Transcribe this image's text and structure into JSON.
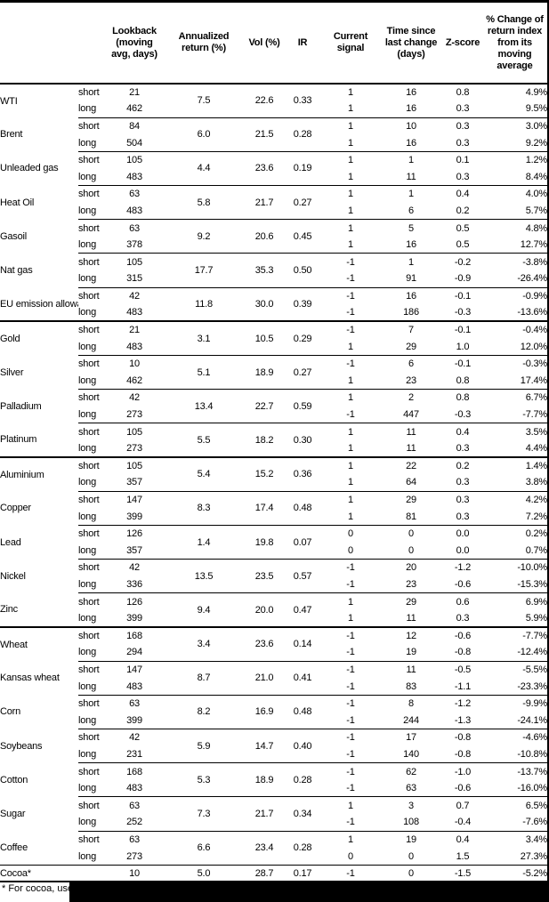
{
  "colors": {
    "background": "#ffffff",
    "text": "#000000",
    "rule": "#000000",
    "redaction": "#000000"
  },
  "table": {
    "header": {
      "name": "",
      "position": "",
      "lookback": "Lookback (moving avg, days)",
      "annualized_return": "Annualized return (%)",
      "vol": "Vol (%)",
      "ir": "IR",
      "current_signal": "Current signal",
      "time_since": "Time since last change (days)",
      "z_score": "Z-score",
      "pct_change": "% Change of return index from its moving average"
    },
    "commodities": [
      {
        "name": "WTI",
        "rule": "none",
        "annualized_return": "7.5",
        "vol": "22.6",
        "ir": "0.33",
        "rows": [
          {
            "position": "short",
            "lookback": "21",
            "signal": "1",
            "days": "16",
            "z_score": "0.8",
            "pct_change": "4.9%"
          },
          {
            "position": "long",
            "lookback": "462",
            "signal": "1",
            "days": "16",
            "z_score": "0.3",
            "pct_change": "9.5%"
          }
        ]
      },
      {
        "name": "Brent",
        "rule": "thin",
        "annualized_return": "6.0",
        "vol": "21.5",
        "ir": "0.28",
        "rows": [
          {
            "position": "short",
            "lookback": "84",
            "signal": "1",
            "days": "10",
            "z_score": "0.3",
            "pct_change": "3.0%"
          },
          {
            "position": "long",
            "lookback": "504",
            "signal": "1",
            "days": "16",
            "z_score": "0.3",
            "pct_change": "9.2%"
          }
        ]
      },
      {
        "name": "Unleaded gas",
        "rule": "thin",
        "annualized_return": "4.4",
        "vol": "23.6",
        "ir": "0.19",
        "rows": [
          {
            "position": "short",
            "lookback": "105",
            "signal": "1",
            "days": "1",
            "z_score": "0.1",
            "pct_change": "1.2%"
          },
          {
            "position": "long",
            "lookback": "483",
            "signal": "1",
            "days": "11",
            "z_score": "0.3",
            "pct_change": "8.4%"
          }
        ]
      },
      {
        "name": "Heat Oil",
        "rule": "thin",
        "annualized_return": "5.8",
        "vol": "21.7",
        "ir": "0.27",
        "rows": [
          {
            "position": "short",
            "lookback": "63",
            "signal": "1",
            "days": "1",
            "z_score": "0.4",
            "pct_change": "4.0%"
          },
          {
            "position": "long",
            "lookback": "483",
            "signal": "1",
            "days": "6",
            "z_score": "0.2",
            "pct_change": "5.7%"
          }
        ]
      },
      {
        "name": "Gasoil",
        "rule": "thin",
        "annualized_return": "9.2",
        "vol": "20.6",
        "ir": "0.45",
        "rows": [
          {
            "position": "short",
            "lookback": "63",
            "signal": "1",
            "days": "5",
            "z_score": "0.5",
            "pct_change": "4.8%"
          },
          {
            "position": "long",
            "lookback": "378",
            "signal": "1",
            "days": "16",
            "z_score": "0.5",
            "pct_change": "12.7%"
          }
        ]
      },
      {
        "name": "Nat gas",
        "rule": "thin",
        "annualized_return": "17.7",
        "vol": "35.3",
        "ir": "0.50",
        "rows": [
          {
            "position": "short",
            "lookback": "105",
            "signal": "-1",
            "days": "1",
            "z_score": "-0.2",
            "pct_change": "-3.8%"
          },
          {
            "position": "long",
            "lookback": "315",
            "signal": "-1",
            "days": "91",
            "z_score": "-0.9",
            "pct_change": "-26.4%"
          }
        ]
      },
      {
        "name": "EU emission allowances",
        "rule": "thin",
        "annualized_return": "11.8",
        "vol": "30.0",
        "ir": "0.39",
        "rows": [
          {
            "position": "short",
            "lookback": "42",
            "signal": "-1",
            "days": "16",
            "z_score": "-0.1",
            "pct_change": "-0.9%"
          },
          {
            "position": "long",
            "lookback": "483",
            "signal": "-1",
            "days": "186",
            "z_score": "-0.3",
            "pct_change": "-13.6%"
          }
        ]
      },
      {
        "name": "Gold",
        "rule": "thick",
        "annualized_return": "3.1",
        "vol": "10.5",
        "ir": "0.29",
        "rows": [
          {
            "position": "short",
            "lookback": "21",
            "signal": "-1",
            "days": "7",
            "z_score": "-0.1",
            "pct_change": "-0.4%"
          },
          {
            "position": "long",
            "lookback": "483",
            "signal": "1",
            "days": "29",
            "z_score": "1.0",
            "pct_change": "12.0%"
          }
        ]
      },
      {
        "name": "Silver",
        "rule": "thin",
        "annualized_return": "5.1",
        "vol": "18.9",
        "ir": "0.27",
        "rows": [
          {
            "position": "short",
            "lookback": "10",
            "signal": "-1",
            "days": "6",
            "z_score": "-0.1",
            "pct_change": "-0.3%"
          },
          {
            "position": "long",
            "lookback": "462",
            "signal": "1",
            "days": "23",
            "z_score": "0.8",
            "pct_change": "17.4%"
          }
        ]
      },
      {
        "name": "Palladium",
        "rule": "thin",
        "annualized_return": "13.4",
        "vol": "22.7",
        "ir": "0.59",
        "rows": [
          {
            "position": "short",
            "lookback": "42",
            "signal": "1",
            "days": "2",
            "z_score": "0.8",
            "pct_change": "6.7%"
          },
          {
            "position": "long",
            "lookback": "273",
            "signal": "-1",
            "days": "447",
            "z_score": "-0.3",
            "pct_change": "-7.7%"
          }
        ]
      },
      {
        "name": "Platinum",
        "rule": "thin",
        "annualized_return": "5.5",
        "vol": "18.2",
        "ir": "0.30",
        "rows": [
          {
            "position": "short",
            "lookback": "105",
            "signal": "1",
            "days": "11",
            "z_score": "0.4",
            "pct_change": "3.5%"
          },
          {
            "position": "long",
            "lookback": "273",
            "signal": "1",
            "days": "11",
            "z_score": "0.3",
            "pct_change": "4.4%"
          }
        ]
      },
      {
        "name": "Aluminium",
        "rule": "thick",
        "annualized_return": "5.4",
        "vol": "15.2",
        "ir": "0.36",
        "rows": [
          {
            "position": "short",
            "lookback": "105",
            "signal": "1",
            "days": "22",
            "z_score": "0.2",
            "pct_change": "1.4%"
          },
          {
            "position": "long",
            "lookback": "357",
            "signal": "1",
            "days": "64",
            "z_score": "0.3",
            "pct_change": "3.8%"
          }
        ]
      },
      {
        "name": "Copper",
        "rule": "thin",
        "annualized_return": "8.3",
        "vol": "17.4",
        "ir": "0.48",
        "rows": [
          {
            "position": "short",
            "lookback": "147",
            "signal": "1",
            "days": "29",
            "z_score": "0.3",
            "pct_change": "4.2%"
          },
          {
            "position": "long",
            "lookback": "399",
            "signal": "1",
            "days": "81",
            "z_score": "0.3",
            "pct_change": "7.2%"
          }
        ]
      },
      {
        "name": "Lead",
        "rule": "thin",
        "annualized_return": "1.4",
        "vol": "19.8",
        "ir": "0.07",
        "rows": [
          {
            "position": "short",
            "lookback": "126",
            "signal": "0",
            "days": "0",
            "z_score": "0.0",
            "pct_change": "0.2%"
          },
          {
            "position": "long",
            "lookback": "357",
            "signal": "0",
            "days": "0",
            "z_score": "0.0",
            "pct_change": "0.7%"
          }
        ]
      },
      {
        "name": "Nickel",
        "rule": "thin",
        "annualized_return": "13.5",
        "vol": "23.5",
        "ir": "0.57",
        "rows": [
          {
            "position": "short",
            "lookback": "42",
            "signal": "-1",
            "days": "20",
            "z_score": "-1.2",
            "pct_change": "-10.0%"
          },
          {
            "position": "long",
            "lookback": "336",
            "signal": "-1",
            "days": "23",
            "z_score": "-0.6",
            "pct_change": "-15.3%"
          }
        ]
      },
      {
        "name": "Zinc",
        "rule": "thin",
        "annualized_return": "9.4",
        "vol": "20.0",
        "ir": "0.47",
        "rows": [
          {
            "position": "short",
            "lookback": "126",
            "signal": "1",
            "days": "29",
            "z_score": "0.6",
            "pct_change": "6.9%"
          },
          {
            "position": "long",
            "lookback": "399",
            "signal": "1",
            "days": "11",
            "z_score": "0.3",
            "pct_change": "5.9%"
          }
        ]
      },
      {
        "name": "Wheat",
        "rule": "thick",
        "annualized_return": "3.4",
        "vol": "23.6",
        "ir": "0.14",
        "rows": [
          {
            "position": "short",
            "lookback": "168",
            "signal": "-1",
            "days": "12",
            "z_score": "-0.6",
            "pct_change": "-7.7%"
          },
          {
            "position": "long",
            "lookback": "294",
            "signal": "-1",
            "days": "19",
            "z_score": "-0.8",
            "pct_change": "-12.4%"
          }
        ]
      },
      {
        "name": "Kansas wheat",
        "rule": "thin",
        "annualized_return": "8.7",
        "vol": "21.0",
        "ir": "0.41",
        "rows": [
          {
            "position": "short",
            "lookback": "147",
            "signal": "-1",
            "days": "11",
            "z_score": "-0.5",
            "pct_change": "-5.5%"
          },
          {
            "position": "long",
            "lookback": "483",
            "signal": "-1",
            "days": "83",
            "z_score": "-1.1",
            "pct_change": "-23.3%"
          }
        ]
      },
      {
        "name": "Corn",
        "rule": "thin",
        "annualized_return": "8.2",
        "vol": "16.9",
        "ir": "0.48",
        "rows": [
          {
            "position": "short",
            "lookback": "63",
            "signal": "-1",
            "days": "8",
            "z_score": "-1.2",
            "pct_change": "-9.9%"
          },
          {
            "position": "long",
            "lookback": "399",
            "signal": "-1",
            "days": "244",
            "z_score": "-1.3",
            "pct_change": "-24.1%"
          }
        ]
      },
      {
        "name": "Soybeans",
        "rule": "thin",
        "annualized_return": "5.9",
        "vol": "14.7",
        "ir": "0.40",
        "rows": [
          {
            "position": "short",
            "lookback": "42",
            "signal": "-1",
            "days": "17",
            "z_score": "-0.8",
            "pct_change": "-4.6%"
          },
          {
            "position": "long",
            "lookback": "231",
            "signal": "-1",
            "days": "140",
            "z_score": "-0.8",
            "pct_change": "-10.8%"
          }
        ]
      },
      {
        "name": "Cotton",
        "rule": "thin",
        "annualized_return": "5.3",
        "vol": "18.9",
        "ir": "0.28",
        "rows": [
          {
            "position": "short",
            "lookback": "168",
            "signal": "-1",
            "days": "62",
            "z_score": "-1.0",
            "pct_change": "-13.7%"
          },
          {
            "position": "long",
            "lookback": "483",
            "signal": "-1",
            "days": "63",
            "z_score": "-0.6",
            "pct_change": "-16.0%"
          }
        ]
      },
      {
        "name": "Sugar",
        "rule": "thin",
        "annualized_return": "7.3",
        "vol": "21.7",
        "ir": "0.34",
        "rows": [
          {
            "position": "short",
            "lookback": "63",
            "signal": "1",
            "days": "3",
            "z_score": "0.7",
            "pct_change": "6.5%"
          },
          {
            "position": "long",
            "lookback": "252",
            "signal": "-1",
            "days": "108",
            "z_score": "-0.4",
            "pct_change": "-7.6%"
          }
        ]
      },
      {
        "name": "Coffee",
        "rule": "thin",
        "annualized_return": "6.6",
        "vol": "23.4",
        "ir": "0.28",
        "rows": [
          {
            "position": "short",
            "lookback": "63",
            "signal": "1",
            "days": "19",
            "z_score": "0.4",
            "pct_change": "3.4%"
          },
          {
            "position": "long",
            "lookback": "273",
            "signal": "0",
            "days": "0",
            "z_score": "1.5",
            "pct_change": "27.3%"
          }
        ]
      },
      {
        "name": "Cocoa*",
        "rule": "full",
        "annualized_return": "5.0",
        "vol": "28.7",
        "ir": "0.17",
        "rows": [
          {
            "position": "",
            "lookback": "10",
            "signal": "-1",
            "days": "0",
            "z_score": "-1.5",
            "pct_change": "-5.2%"
          }
        ]
      }
    ],
    "footnote": "* For cocoa, uses c"
  }
}
